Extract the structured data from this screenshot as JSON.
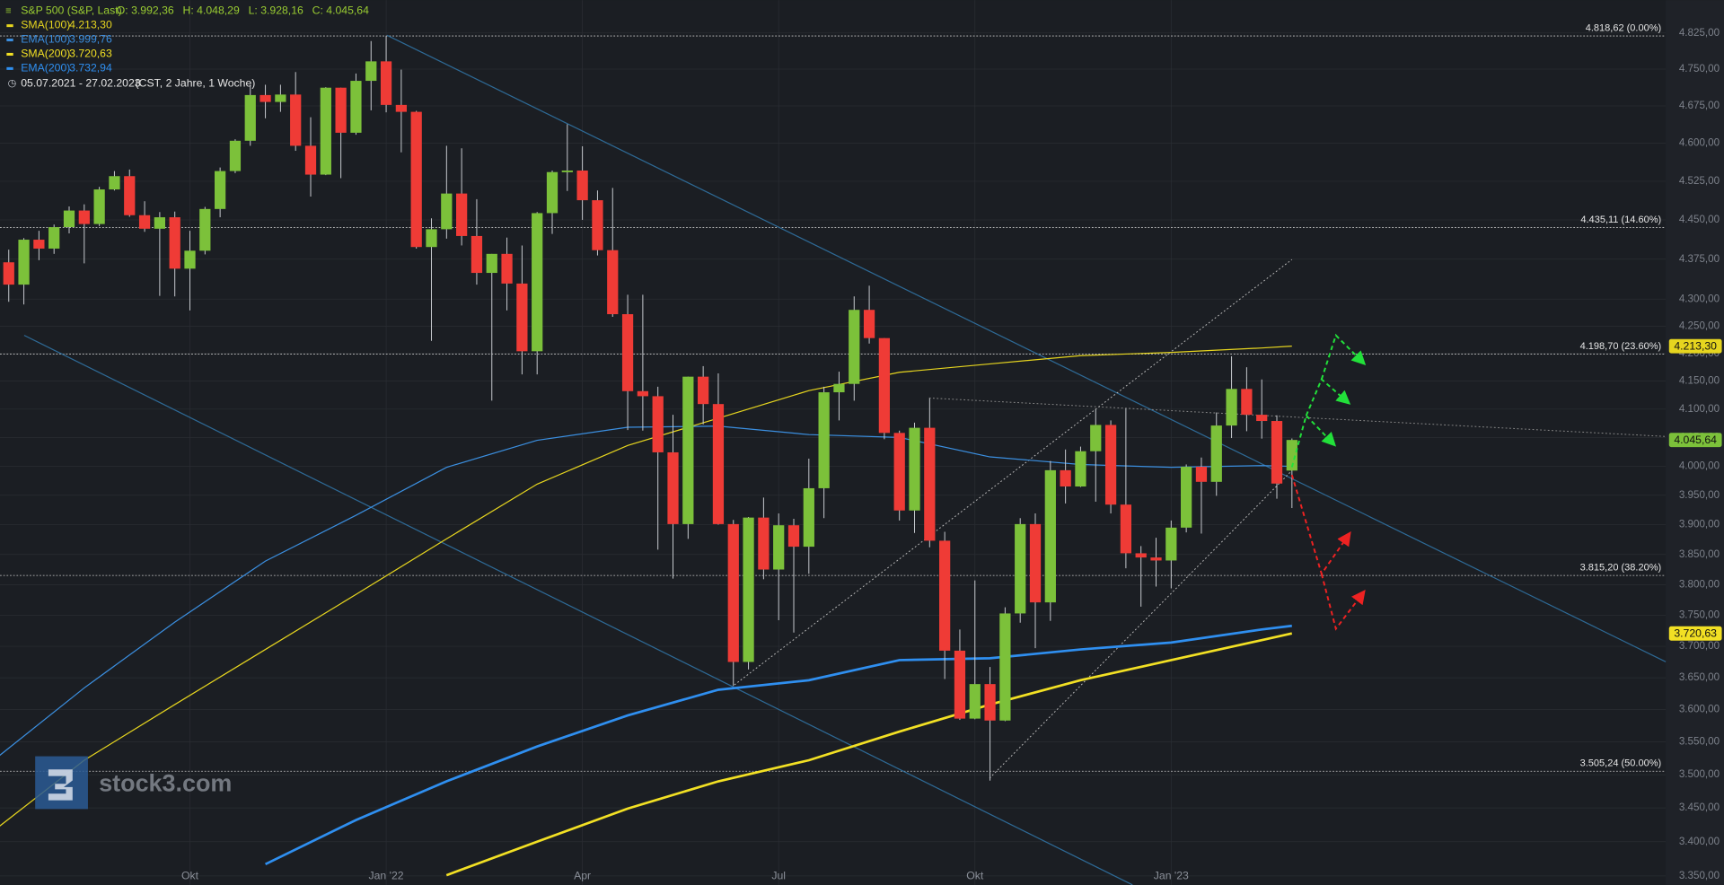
{
  "chart_data": {
    "type": "candlestick",
    "title": "S&P 500 (S&P, Last)",
    "ohlc_labels": [
      "O: 3.992,36",
      "H: 4.048,29",
      "L: 3.928,16",
      "C: 4.045,64"
    ],
    "date_range": "05.07.2021 - 27.02.2023",
    "range_note": "(CST, 2 Jahre, 1 Woche)",
    "watermark": "stock3.com",
    "log_scale": true,
    "grid": true,
    "up_color": "#7cc13a",
    "down_color": "#ef3b36",
    "xlim": [
      0.42,
      110.76
    ],
    "ylim": [
      3337,
      4894
    ],
    "xticks": [
      {
        "value": 13,
        "label": "Okt"
      },
      {
        "value": 26,
        "label": "Jan '22"
      },
      {
        "value": 39,
        "label": "Apr"
      },
      {
        "value": 52,
        "label": "Jul"
      },
      {
        "value": 65,
        "label": "Okt"
      },
      {
        "value": 78,
        "label": "Jan '23"
      }
    ],
    "yticks": [
      {
        "value": 4825,
        "label": "4.825,00"
      },
      {
        "value": 4750,
        "label": "4.750,00"
      },
      {
        "value": 4675,
        "label": "4.675,00"
      },
      {
        "value": 4600,
        "label": "4.600,00"
      },
      {
        "value": 4525,
        "label": "4.525,00"
      },
      {
        "value": 4450,
        "label": "4.450,00"
      },
      {
        "value": 4375,
        "label": "4.375,00"
      },
      {
        "value": 4300,
        "label": "4.300,00"
      },
      {
        "value": 4250,
        "label": "4.250,00"
      },
      {
        "value": 4200,
        "label": "4.200,00"
      },
      {
        "value": 4150,
        "label": "4.150,00"
      },
      {
        "value": 4100,
        "label": "4.100,00"
      },
      {
        "value": 4050,
        "label": "4.050,00"
      },
      {
        "value": 4000,
        "label": "4.000,00"
      },
      {
        "value": 3950,
        "label": "3.950,00"
      },
      {
        "value": 3900,
        "label": "3.900,00"
      },
      {
        "value": 3850,
        "label": "3.850,00"
      },
      {
        "value": 3800,
        "label": "3.800,00"
      },
      {
        "value": 3750,
        "label": "3.750,00"
      },
      {
        "value": 3700,
        "label": "3.700,00"
      },
      {
        "value": 3650,
        "label": "3.650,00"
      },
      {
        "value": 3600,
        "label": "3.600,00"
      },
      {
        "value": 3550,
        "label": "3.550,00"
      },
      {
        "value": 3500,
        "label": "3.500,00"
      },
      {
        "value": 3450,
        "label": "3.450,00"
      },
      {
        "value": 3400,
        "label": "3.400,00"
      },
      {
        "value": 3350,
        "label": "3.350,00"
      }
    ],
    "open": [
      4352,
      4369,
      4327,
      4412,
      4395,
      4436,
      4468,
      4442,
      4509,
      4535,
      4459,
      4433,
      4455,
      4357,
      4391,
      4471,
      4545,
      4605,
      4697,
      4683,
      4698,
      4595,
      4538,
      4712,
      4621,
      4726,
      4766,
      4677,
      4663,
      4398,
      4432,
      4501,
      4419,
      4349,
      4385,
      4329,
      4204,
      4463,
      4543,
      4546,
      4488,
      4392,
      4272,
      4132,
      4123,
      4024,
      3901,
      4158,
      4109,
      3901,
      3675,
      3912,
      3825,
      3899,
      3863,
      3962,
      4130,
      4145,
      4280,
      4228,
      4058,
      3924,
      4067,
      3873,
      3693,
      3586,
      3640,
      3583,
      3753,
      3901,
      3771,
      3993,
      3965,
      4026,
      4072,
      3934,
      3852,
      3845,
      3840,
      3895,
      3999,
      3973,
      4071,
      4136,
      4090,
      4079,
      3992.36
    ],
    "high": [
      4372,
      4393,
      4415,
      4429,
      4441,
      4476,
      4480,
      4514,
      4545,
      4548,
      4486,
      4465,
      4466,
      4429,
      4475,
      4552,
      4608,
      4718,
      4718,
      4718,
      4744,
      4652,
      4713,
      4712,
      4741,
      4808,
      4819,
      4749,
      4665,
      4453,
      4595,
      4590,
      4490,
      4385,
      4416,
      4401,
      4465,
      4546,
      4638,
      4594,
      4507,
      4512,
      4308,
      4308,
      4140,
      4090,
      4158,
      4177,
      4164,
      3908,
      3913,
      3946,
      3919,
      3910,
      4013,
      4140,
      4167,
      4305,
      4325,
      4228,
      4062,
      4076,
      4119,
      3888,
      3727,
      3807,
      3667,
      3763,
      3911,
      3919,
      4009,
      4029,
      4034,
      4100,
      4080,
      4101,
      3864,
      3878,
      3907,
      4003,
      4015,
      4094,
      4195,
      4175,
      4153,
      4089,
      4048.29
    ],
    "low": [
      4321,
      4295,
      4290,
      4373,
      4385,
      4424,
      4367,
      4438,
      4507,
      4456,
      4427,
      4306,
      4305,
      4279,
      4384,
      4455,
      4541,
      4595,
      4650,
      4663,
      4585,
      4495,
      4537,
      4531,
      4617,
      4666,
      4662,
      4582,
      4395,
      4223,
      4414,
      4401,
      4327,
      4115,
      4279,
      4162,
      4162,
      4423,
      4506,
      4450,
      4382,
      4267,
      4063,
      4062,
      3858,
      3810,
      3876,
      4073,
      3900,
      3637,
      3663,
      3809,
      3742,
      3722,
      3818,
      3911,
      4080,
      4115,
      4218,
      4047,
      3907,
      3886,
      3862,
      3648,
      3584,
      3585,
      3491,
      3582,
      3738,
      3697,
      3741,
      3936,
      3964,
      3939,
      3919,
      3827,
      3764,
      3797,
      3794,
      3887,
      3885,
      3949,
      4049,
      4061,
      4048,
      3944,
      3928.16
    ],
    "close": [
      4369,
      4327,
      4412,
      4395,
      4436,
      4468,
      4442,
      4509,
      4535,
      4459,
      4433,
      4455,
      4357,
      4391,
      4471,
      4545,
      4605,
      4697,
      4683,
      4698,
      4595,
      4538,
      4712,
      4621,
      4726,
      4766,
      4677,
      4663,
      4398,
      4432,
      4501,
      4419,
      4349,
      4385,
      4329,
      4204,
      4463,
      4543,
      4546,
      4488,
      4392,
      4272,
      4132,
      4123,
      4024,
      3901,
      4158,
      4109,
      3901,
      3675,
      3912,
      3825,
      3899,
      3863,
      3962,
      4130,
      4145,
      4280,
      4228,
      4058,
      3924,
      4067,
      3873,
      3693,
      3586,
      3640,
      3583,
      3753,
      3901,
      3771,
      3993,
      3965,
      4026,
      4072,
      3934,
      3852,
      3845,
      3840,
      3895,
      3999,
      3973,
      4071,
      4136,
      4090,
      4079,
      3970,
      4045.64
    ],
    "close_tag": {
      "value": 4045.64,
      "label": "4.045,64"
    },
    "indicators": [
      {
        "name": "SMA(100)",
        "color": "#e6d51f",
        "width": 1,
        "tag": true,
        "last": {
          "value": 4213.3,
          "label": "4.213,30"
        },
        "index": [
          0,
          6,
          12,
          18,
          24,
          30,
          36,
          42,
          48,
          54,
          60,
          66,
          72,
          78,
          84,
          86
        ],
        "values": [
          3416,
          3522,
          3608,
          3695,
          3784,
          3876,
          3969,
          4036,
          4084,
          4133,
          4166,
          4181,
          4196,
          4202,
          4210,
          4213.3
        ]
      },
      {
        "name": "EMA(100)",
        "color": "#3b8fe0",
        "width": 1,
        "tag": false,
        "last": {
          "value": 3999.76,
          "label": "3.999,76"
        },
        "index": [
          0,
          6,
          12,
          18,
          24,
          30,
          36,
          42,
          48,
          54,
          60,
          66,
          72,
          78,
          84,
          86
        ],
        "values": [
          3522,
          3634,
          3739,
          3839,
          3916,
          3998,
          4045,
          4068,
          4070,
          4055,
          4050,
          4016,
          4003,
          3998,
          4001,
          3999.76
        ]
      },
      {
        "name": "SMA(200)",
        "color": "#f2e024",
        "width": 2.2,
        "tag": true,
        "last": {
          "value": 3720.63,
          "label": "3.720,63"
        },
        "index": [
          30,
          36,
          42,
          48,
          54,
          60,
          66,
          72,
          78,
          84,
          86
        ],
        "values": [
          3351,
          3400,
          3449,
          3490,
          3522,
          3566,
          3608,
          3646,
          3678,
          3710,
          3720.63
        ]
      },
      {
        "name": "EMA(200)",
        "color": "#2f8ff0",
        "width": 2.2,
        "tag": false,
        "last": {
          "value": 3732.94,
          "label": "3.732,94"
        },
        "index": [
          18,
          24,
          30,
          36,
          42,
          48,
          54,
          60,
          66,
          72,
          78,
          84,
          86
        ],
        "values": [
          3367,
          3432,
          3490,
          3543,
          3591,
          3631,
          3646,
          3678,
          3681,
          3695,
          3706,
          3727,
          3732.94
        ]
      }
    ],
    "fib_levels": [
      {
        "value": 4818.62,
        "label": "4.818,62 (0.00%)"
      },
      {
        "value": 4435.11,
        "label": "4.435,11 (14.60%)"
      },
      {
        "value": 4198.7,
        "label": "4.198,70 (23.60%)"
      },
      {
        "value": 3815.2,
        "label": "3.815,20 (38.20%)"
      },
      {
        "value": 3505.24,
        "label": "3.505,24 (50.00%)"
      }
    ]
  }
}
